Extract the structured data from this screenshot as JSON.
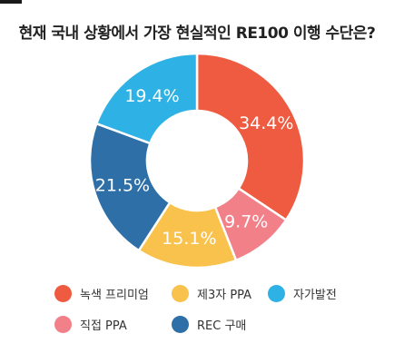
{
  "chart_data": {
    "type": "pie",
    "title": "현재 국내 상황에서 가장 현실적인 RE100 이행 수단은?",
    "categories": [
      "녹색 프리미엄",
      "직접 PPA",
      "제3자 PPA",
      "REC 구매",
      "자가발전"
    ],
    "values": [
      34.4,
      9.7,
      15.1,
      21.5,
      19.4
    ],
    "labels": [
      "34.4%",
      "9.7%",
      "15.1%",
      "21.5%",
      "19.4%"
    ],
    "colors": [
      "#ef5b40",
      "#f28089",
      "#f8c24c",
      "#2e6fa8",
      "#2eb1e4"
    ],
    "legend_placement": "bottom",
    "legend": [
      {
        "label": "녹색 프리미엄",
        "color": "#ef5b40"
      },
      {
        "label": "제3자 PPA",
        "color": "#f8c24c"
      },
      {
        "label": "자가발전",
        "color": "#2eb1e4"
      },
      {
        "label": "직접 PPA",
        "color": "#f28089"
      },
      {
        "label": "REC 구매",
        "color": "#2e6fa8"
      }
    ]
  }
}
